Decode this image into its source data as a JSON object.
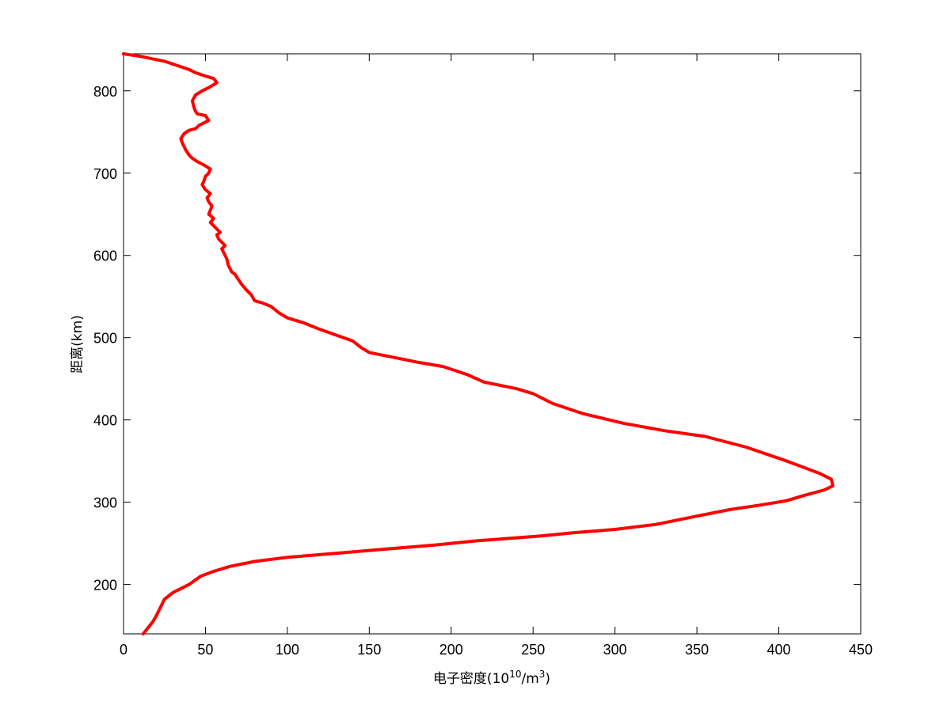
{
  "chart_data": {
    "type": "line",
    "xlabel_main": "电子密度(10",
    "xlabel_exp1": "10",
    "xlabel_mid": "/m",
    "xlabel_exp2": "3",
    "xlabel_end": ")",
    "ylabel": "距离(km)",
    "xlim": [
      0,
      450
    ],
    "ylim": [
      140,
      845
    ],
    "xticks": [
      0,
      50,
      100,
      150,
      200,
      250,
      300,
      350,
      400,
      450
    ],
    "yticks": [
      200,
      300,
      400,
      500,
      600,
      700,
      800
    ],
    "grid": false,
    "line_color": "#ff0000",
    "series": [
      {
        "x": [
          12,
          14,
          16,
          18,
          20,
          22,
          25,
          30,
          35,
          40,
          47,
          55,
          65,
          80,
          100,
          130,
          160,
          190,
          215,
          235,
          255,
          275,
          300,
          325,
          347,
          370,
          390,
          405,
          415,
          428,
          433,
          432,
          425,
          405,
          380,
          355,
          330,
          305,
          280,
          262,
          250,
          240,
          220,
          210,
          195,
          180,
          170,
          160,
          150,
          145,
          140,
          130,
          120,
          110,
          100,
          95,
          90,
          85,
          80,
          78,
          75,
          72,
          70,
          68,
          66,
          65,
          64,
          63,
          62,
          61,
          60,
          62,
          60,
          58,
          57,
          59,
          57,
          55,
          53,
          55,
          52,
          53,
          54,
          52,
          51,
          53,
          50,
          48,
          49,
          50,
          52,
          53,
          49,
          45,
          42,
          40,
          38,
          36,
          35,
          37,
          40,
          44,
          46,
          52,
          50,
          45,
          44,
          43,
          42,
          44,
          48,
          53,
          57,
          55,
          50,
          44,
          40,
          34,
          25,
          10,
          0
        ],
        "y": [
          140,
          145,
          150,
          155,
          162,
          170,
          182,
          190,
          195,
          200,
          210,
          216,
          222,
          228,
          233,
          238,
          243,
          248,
          253,
          256,
          259,
          263,
          267,
          273,
          282,
          291,
          297,
          302,
          308,
          315,
          320,
          328,
          335,
          350,
          367,
          380,
          387,
          396,
          408,
          420,
          432,
          438,
          446,
          455,
          465,
          470,
          474,
          478,
          482,
          488,
          496,
          503,
          510,
          518,
          524,
          530,
          538,
          542,
          545,
          552,
          558,
          565,
          571,
          577,
          580,
          584,
          588,
          596,
          600,
          604,
          608,
          612,
          616,
          620,
          625,
          628,
          632,
          636,
          640,
          645,
          650,
          655,
          660,
          665,
          670,
          675,
          680,
          686,
          690,
          696,
          700,
          705,
          710,
          714,
          718,
          722,
          728,
          736,
          742,
          748,
          752,
          754,
          758,
          764,
          770,
          772,
          775,
          780,
          788,
          795,
          800,
          805,
          810,
          815,
          818,
          822,
          826,
          830,
          836,
          842,
          845
        ]
      }
    ]
  }
}
